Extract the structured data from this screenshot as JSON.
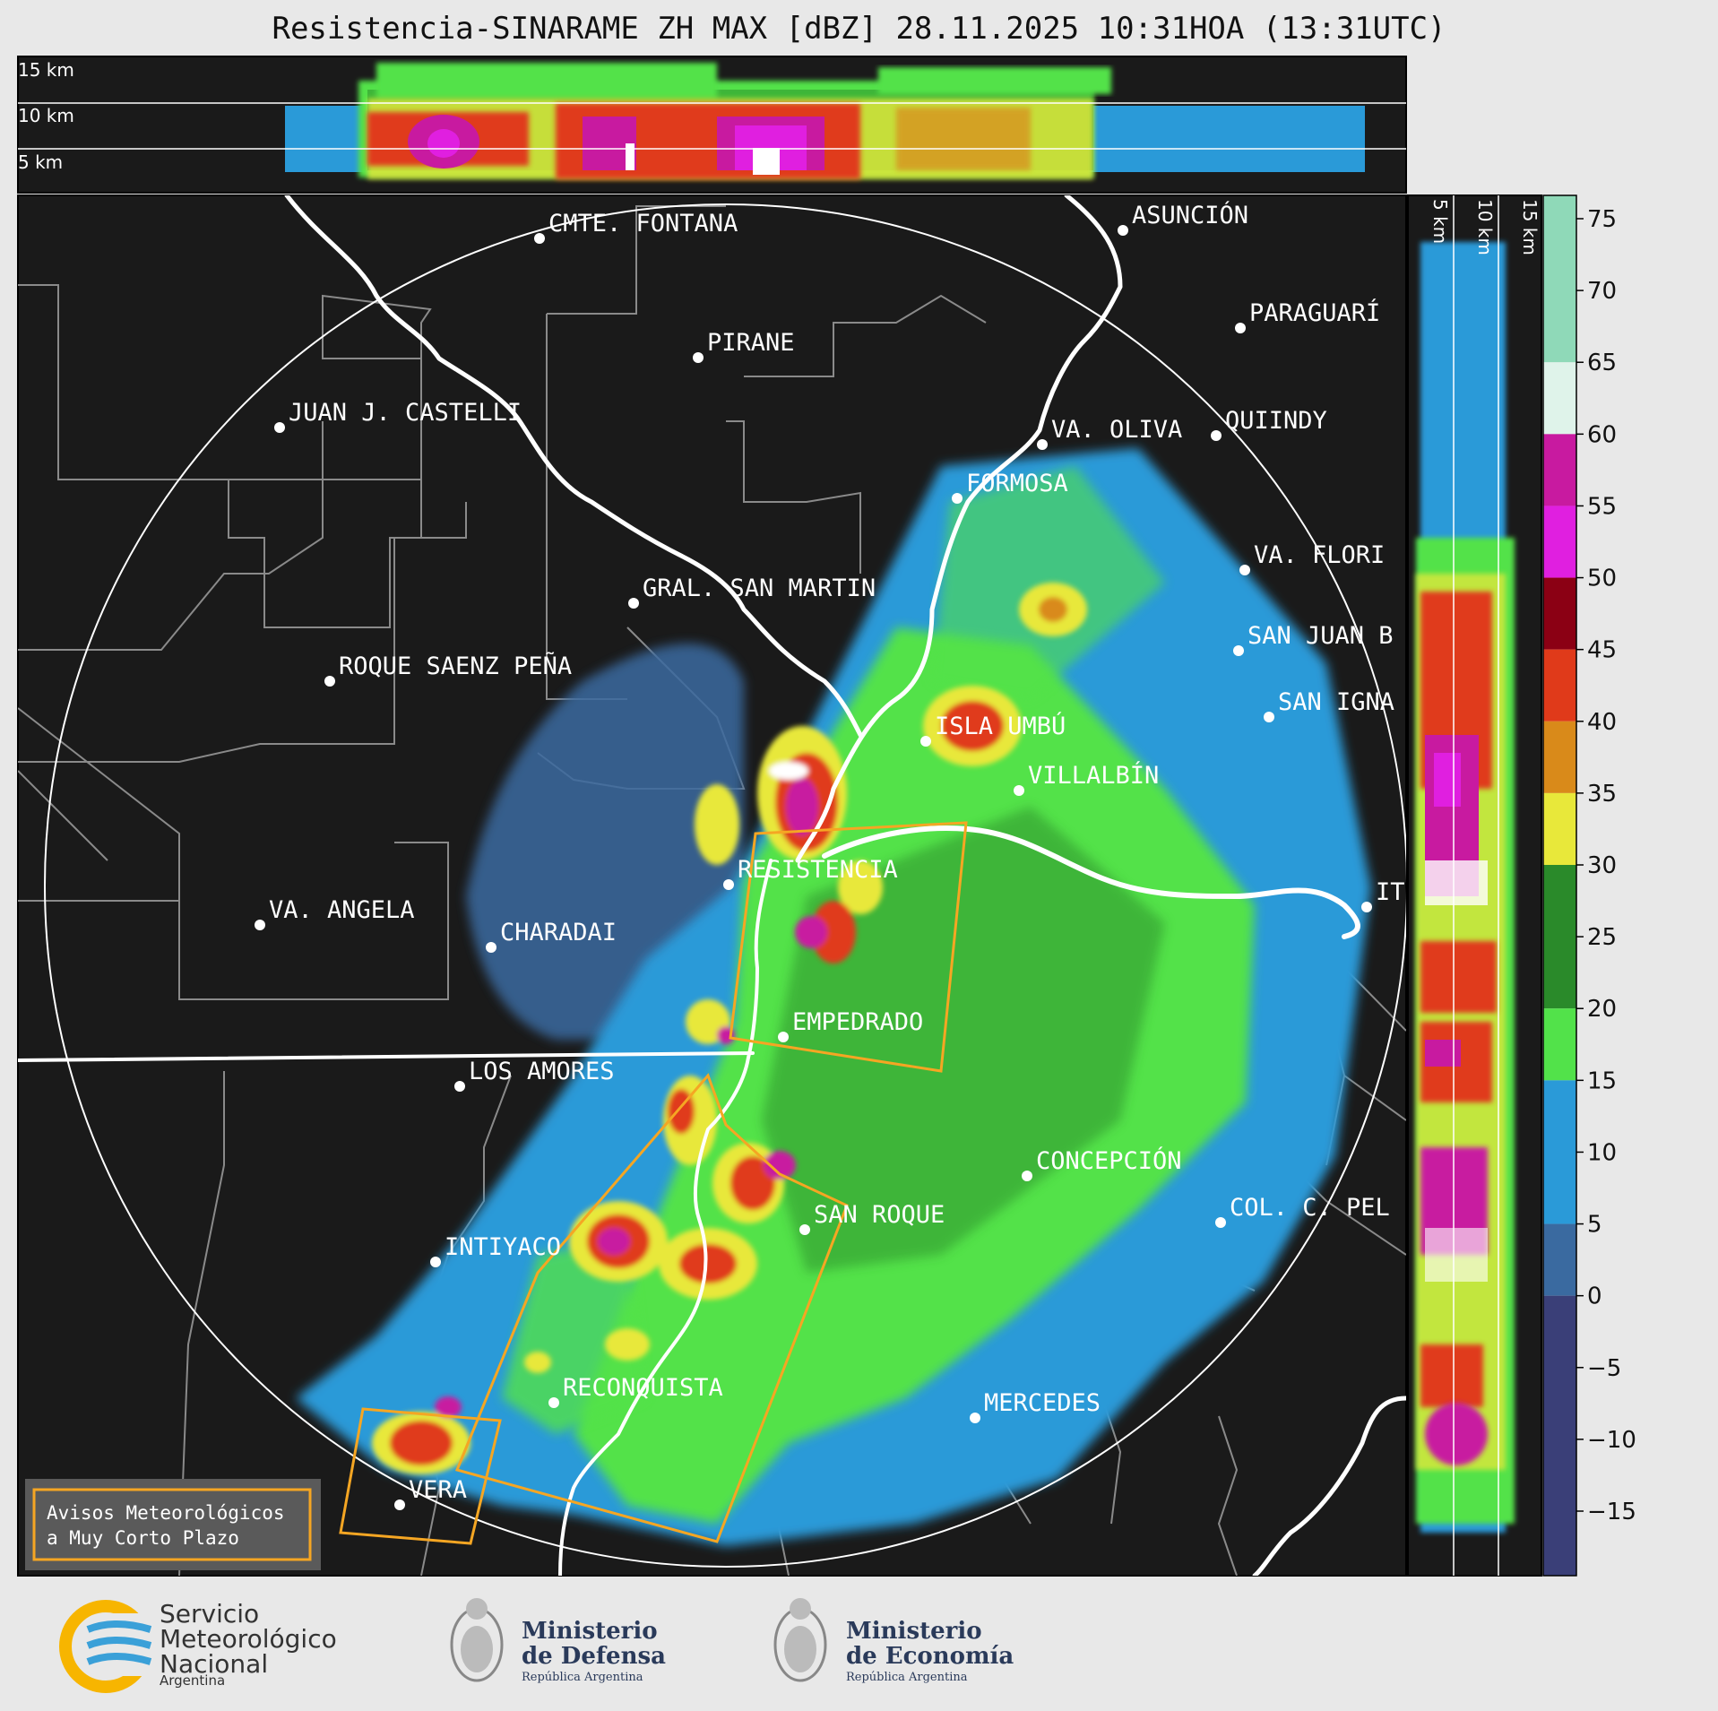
{
  "title": "Resistencia-SINARAME ZH MAX [dBZ] 28.11.2025 10:31HOA (13:31UTC)",
  "top_panel": {
    "labels": [
      "15 km",
      "10 km",
      "5 km"
    ]
  },
  "side_panel": {
    "labels": [
      "5 km",
      "10 km",
      "15 km"
    ]
  },
  "colorbar": {
    "ticks": [
      "75",
      "70",
      "65",
      "60",
      "55",
      "50",
      "45",
      "40",
      "35",
      "30",
      "25",
      "20",
      "15",
      "10",
      "5",
      "0",
      "−5",
      "−10",
      "−15"
    ],
    "colors": {
      "65_75": "#8fd9b8",
      "60_65": "#dff3ea",
      "55_60": "#c81aa0",
      "50_55": "#e01fe0",
      "45_50": "#8b0014",
      "40_45": "#e03a1a",
      "35_40": "#d98a1a",
      "30_35": "#e8e83a",
      "20_30": "#2a8a2a",
      "15_20": "#52e24a",
      "5_15": "#2a9ad8",
      "0_5": "#3a6aa0",
      "neg": "#3a3f78"
    }
  },
  "cities": [
    {
      "name": "CMTE. FONTANA"
    },
    {
      "name": "ASUNCIÓN"
    },
    {
      "name": "PIRANE"
    },
    {
      "name": "PARAGUARÍ"
    },
    {
      "name": "JUAN J. CASTELLI"
    },
    {
      "name": "VA. OLIVA"
    },
    {
      "name": "QUIINDY"
    },
    {
      "name": "FORMOSA"
    },
    {
      "name": "VA. FLORI"
    },
    {
      "name": "GRAL. SAN MARTIN"
    },
    {
      "name": "SAN JUAN B"
    },
    {
      "name": "ROQUE SAENZ PEÑA"
    },
    {
      "name": "SAN IGNA"
    },
    {
      "name": "ISLA UMBÚ"
    },
    {
      "name": "VILLALBÍN"
    },
    {
      "name": "RESISTENCIA"
    },
    {
      "name": "IT"
    },
    {
      "name": "VA. ANGELA"
    },
    {
      "name": "CHARADAI"
    },
    {
      "name": "EMPEDRADO"
    },
    {
      "name": "LOS AMORES"
    },
    {
      "name": "CONCEPCIÓN"
    },
    {
      "name": "SAN ROQUE"
    },
    {
      "name": "COL. C. PEL"
    },
    {
      "name": "INTIYACO"
    },
    {
      "name": "RECONQUISTA"
    },
    {
      "name": "MERCEDES"
    },
    {
      "name": "VERA"
    }
  ],
  "legend": {
    "line1": "Avisos Meteorológicos",
    "line2": "a Muy Corto Plazo",
    "warning_color": "#f5a623"
  },
  "footer": {
    "smn": {
      "line1": "Servicio",
      "line2": "Meteorológico",
      "line3": "Nacional",
      "line4": "Argentina"
    },
    "defensa": {
      "line1": "Ministerio",
      "line2": "de Defensa",
      "line3": "República Argentina"
    },
    "economia": {
      "line1": "Ministerio",
      "line2": "de Economía",
      "line3": "República Argentina"
    }
  }
}
